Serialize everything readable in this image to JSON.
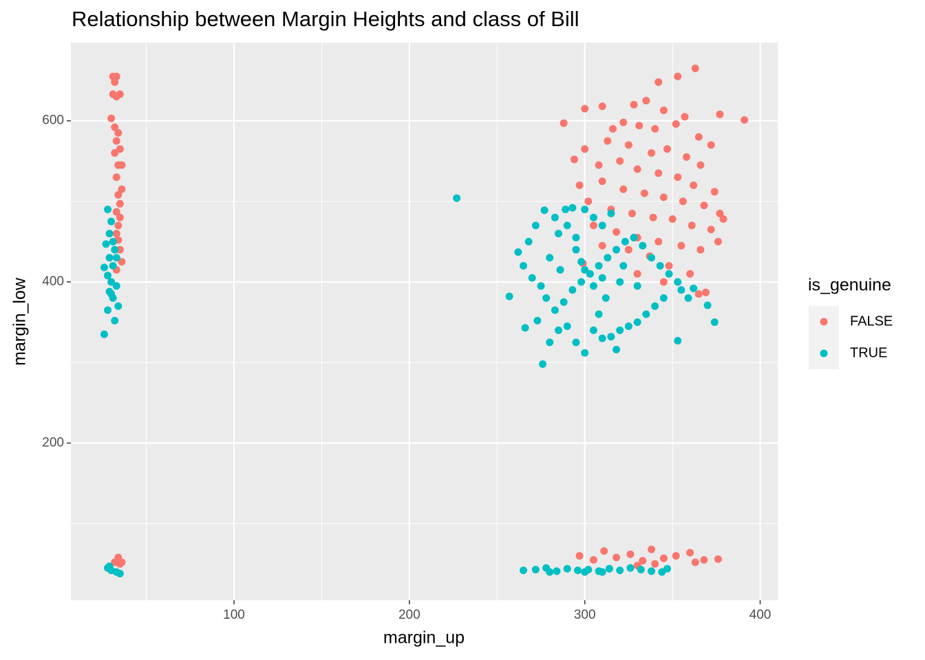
{
  "chart_data": {
    "type": "scatter",
    "title": "Relationship between Margin Heights and class of Bill",
    "x_label": "margin_up",
    "y_label": "margin_low",
    "legend_title": "is_genuine",
    "xlim": [
      7,
      410
    ],
    "ylim": [
      5,
      697
    ],
    "xticks": [
      100,
      200,
      300,
      400
    ],
    "yticks": [
      200,
      400,
      600
    ],
    "x_minor_ticks": [
      50,
      150,
      250,
      350
    ],
    "y_minor_ticks": [
      100,
      300,
      500
    ],
    "grid": true,
    "legend": "right",
    "series": [
      {
        "name": "FALSE",
        "color": "#F8766D",
        "x": [
          31,
          33,
          32,
          31,
          33,
          35,
          30,
          32,
          34,
          33,
          35,
          32,
          34,
          36,
          33,
          36,
          34,
          35,
          33,
          35,
          34,
          33,
          34,
          35,
          36,
          33,
          32,
          34,
          35,
          36,
          363,
          353,
          342,
          328,
          310,
          300,
          335,
          345,
          357,
          377,
          391,
          288,
          316,
          322,
          331,
          340,
          352,
          365,
          372,
          300,
          313,
          325,
          338,
          347,
          358,
          366,
          294,
          308,
          320,
          330,
          342,
          353,
          362,
          374,
          297,
          310,
          322,
          334,
          345,
          356,
          368,
          377,
          302,
          315,
          327,
          339,
          350,
          361,
          372,
          379,
          305,
          318,
          330,
          342,
          355,
          366,
          376,
          310,
          325,
          337,
          348,
          360,
          365,
          369,
          299,
          330,
          345,
          297,
          305,
          311,
          318,
          326,
          333,
          338,
          345,
          352,
          360,
          363,
          368,
          376,
          330,
          340
        ],
        "values": [
          655,
          655,
          648,
          633,
          630,
          633,
          603,
          592,
          585,
          575,
          565,
          560,
          545,
          545,
          530,
          515,
          508,
          497,
          487,
          480,
          470,
          460,
          452,
          440,
          425,
          415,
          52,
          58,
          50,
          52,
          665,
          655,
          648,
          620,
          618,
          615,
          625,
          613,
          605,
          608,
          601,
          597,
          590,
          598,
          594,
          590,
          596,
          580,
          570,
          565,
          575,
          570,
          560,
          565,
          555,
          545,
          552,
          545,
          550,
          540,
          535,
          530,
          520,
          512,
          520,
          525,
          515,
          510,
          505,
          500,
          495,
          485,
          500,
          490,
          485,
          480,
          478,
          470,
          465,
          478,
          470,
          462,
          455,
          450,
          445,
          440,
          450,
          445,
          440,
          432,
          420,
          410,
          385,
          387,
          423,
          410,
          400,
          60,
          55,
          66,
          58,
          62,
          54,
          68,
          57,
          60,
          64,
          52,
          55,
          56,
          48,
          50
        ]
      },
      {
        "name": "TRUE",
        "color": "#00BFC4",
        "x": [
          28,
          30,
          29,
          31,
          27,
          32,
          29,
          26,
          31,
          28,
          30,
          33,
          29,
          31,
          34,
          28,
          32,
          26,
          30,
          33,
          28,
          30,
          33,
          35,
          29,
          227,
          257,
          262,
          268,
          272,
          277,
          283,
          289,
          293,
          265,
          270,
          275,
          280,
          285,
          290,
          295,
          300,
          305,
          310,
          315,
          278,
          283,
          288,
          293,
          298,
          303,
          308,
          313,
          318,
          323,
          328,
          333,
          338,
          343,
          348,
          353,
          345,
          340,
          335,
          330,
          325,
          320,
          315,
          310,
          305,
          300,
          295,
          290,
          285,
          280,
          276,
          266,
          273,
          355,
          359,
          362,
          370,
          374,
          353,
          318,
          300,
          305,
          310,
          298,
          312,
          295,
          320,
          322,
          308,
          286,
          330,
          265,
          272,
          278,
          284,
          290,
          296,
          302,
          308,
          314,
          320,
          326,
          332,
          338,
          344,
          347,
          300,
          310,
          280
        ],
        "values": [
          490,
          475,
          460,
          450,
          447,
          440,
          430,
          418,
          420,
          408,
          400,
          395,
          388,
          380,
          370,
          365,
          352,
          335,
          385,
          430,
          45,
          42,
          40,
          38,
          47,
          504,
          382,
          437,
          450,
          470,
          489,
          480,
          490,
          492,
          420,
          405,
          395,
          430,
          460,
          470,
          455,
          490,
          480,
          470,
          485,
          380,
          365,
          375,
          390,
          400,
          410,
          420,
          430,
          440,
          450,
          455,
          445,
          430,
          420,
          410,
          400,
          380,
          370,
          360,
          350,
          345,
          340,
          332,
          330,
          340,
          312,
          325,
          345,
          340,
          325,
          298,
          343,
          352,
          390,
          380,
          392,
          371,
          350,
          327,
          316,
          415,
          395,
          405,
          425,
          380,
          440,
          400,
          420,
          360,
          415,
          395,
          42,
          43,
          45,
          41,
          44,
          42,
          43,
          41,
          44,
          42,
          45,
          43,
          41,
          40,
          44,
          40,
          40,
          40
        ]
      }
    ]
  }
}
